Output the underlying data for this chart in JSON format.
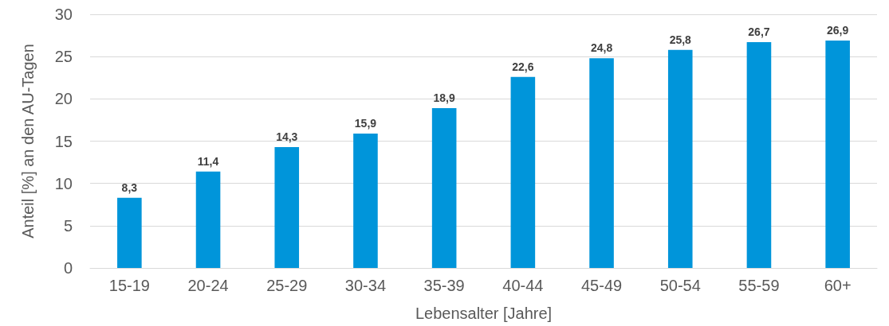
{
  "chart_data": {
    "type": "bar",
    "xlabel": "Lebensalter [Jahre]",
    "ylabel": "Anteil [%] an den AU-Tagen",
    "categories": [
      "15-19",
      "20-24",
      "25-29",
      "30-34",
      "35-39",
      "40-44",
      "45-49",
      "50-54",
      "55-59",
      "60+"
    ],
    "values": [
      8.3,
      11.4,
      14.3,
      15.9,
      18.9,
      22.6,
      24.8,
      25.8,
      26.7,
      26.9
    ],
    "value_labels": [
      "8,3",
      "11,4",
      "14,3",
      "15,9",
      "18,9",
      "22,6",
      "24,8",
      "25,8",
      "26,7",
      "26,9"
    ],
    "color": "#0095da",
    "ylim": [
      0,
      30
    ],
    "yticks": [
      0,
      5,
      10,
      15,
      20,
      25,
      30
    ],
    "grid": "y"
  }
}
